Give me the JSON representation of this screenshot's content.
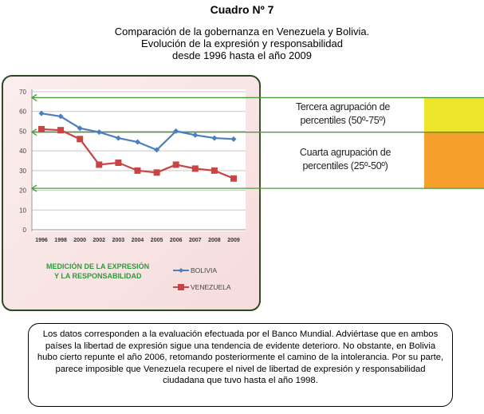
{
  "title": "Cuadro Nº 7",
  "subtitle": [
    "Comparación de la gobernanza en Venezuela y Bolivia.",
    "Evolución de la expresión y responsabilidad",
    "desde 1996 hasta el año 2009"
  ],
  "chart_data": {
    "type": "line",
    "categories": [
      "1996",
      "1998",
      "2000",
      "2002",
      "2003",
      "2004",
      "2005",
      "2006",
      "2007",
      "2008",
      "2009"
    ],
    "series": [
      {
        "name": "BOLIVIA",
        "color": "#4a7fc0",
        "values": [
          59,
          57.5,
          51.5,
          49.5,
          46.5,
          44.5,
          40.5,
          50,
          48,
          46.5,
          46
        ]
      },
      {
        "name": "VENEZUELA",
        "color": "#c94545",
        "values": [
          51,
          50.5,
          46,
          33,
          34,
          30,
          29,
          33,
          31,
          30,
          26
        ]
      }
    ],
    "ylim": [
      0,
      70
    ],
    "yticks": [
      0,
      10,
      20,
      30,
      40,
      50,
      60,
      70
    ],
    "annotation": [
      "MEDICIÓN DE LA EXPRESIÓN",
      "Y LA RESPONSABILIDAD"
    ],
    "reference_lines": [
      67,
      49.5,
      21
    ],
    "legend": "bottom-right"
  },
  "bands": [
    {
      "label": [
        "Tercera agrupación de",
        "percentiles (50º-75º)"
      ],
      "color": "#ede62a"
    },
    {
      "label": [
        "Cuarta agrupación de",
        "percentiles (25º-50º)"
      ],
      "color": "#f4a02a"
    }
  ],
  "note": "Los datos corresponden a la evaluación efectuada por el Banco Mundial. Adviértase que en ambos países la libertad de expresión sigue una tendencia de evidente deterioro. No obstante, en Bolivia hubo cierto repunte el año 2006, retomando posteriormente el camino de la intolerancia. Por su parte, parece imposible que Venezuela recupere el nivel de libertad de expresión y responsabilidad ciudadana que tuvo hasta el año 1998."
}
